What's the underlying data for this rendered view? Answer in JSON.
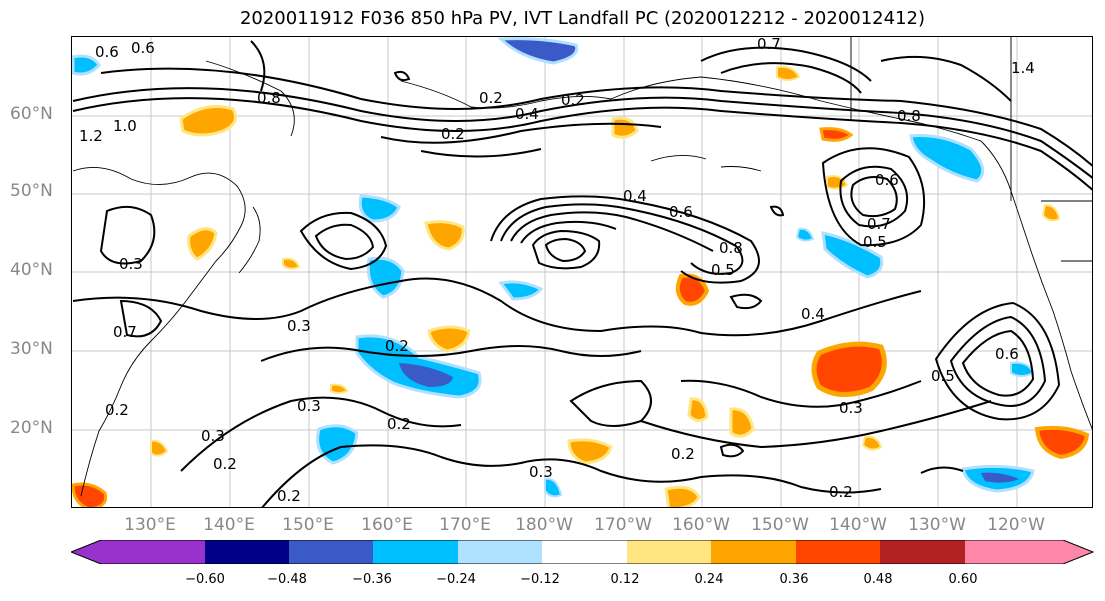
{
  "title": "2020011912 F036 850 hPa PV, IVT Landfall PC (2020012212 - 2020012412)",
  "lat_labels": [
    "60°N",
    "50°N",
    "40°N",
    "30°N",
    "20°N"
  ],
  "lon_labels": [
    "130°E",
    "140°E",
    "150°E",
    "160°E",
    "170°E",
    "180°W",
    "170°W",
    "160°W",
    "150°W",
    "140°W",
    "130°W",
    "120°W"
  ],
  "contour_labels": [
    "0.6",
    "0.6",
    "1.2",
    "1.0",
    "0.8",
    "0.2",
    "0.2",
    "0.4",
    "0.2",
    "0.7",
    "1.4",
    "0.8",
    "0.4",
    "0.6",
    "0.8",
    "0.6",
    "0.7",
    "0.5",
    "0.5",
    "0.4",
    "0.2",
    "0.3",
    "0.7",
    "0.3",
    "0.2",
    "0.3",
    "0.2",
    "0.2",
    "0.3",
    "0.2",
    "0.3",
    "0.2",
    "0.2",
    "0.3",
    "0.6",
    "0.5"
  ],
  "colorbar": {
    "ticks": [
      "−0.60",
      "−0.48",
      "−0.36",
      "−0.24",
      "−0.12",
      "0.12",
      "0.24",
      "0.36",
      "0.48",
      "0.60"
    ],
    "colors": [
      "#9932cc",
      "#00008b",
      "#3a5bc7",
      "#00bfff",
      "#b0e0ff",
      "#ffffff",
      "#ffe680",
      "#ffa500",
      "#ff4500",
      "#b22222",
      "#ff88aa"
    ]
  }
}
